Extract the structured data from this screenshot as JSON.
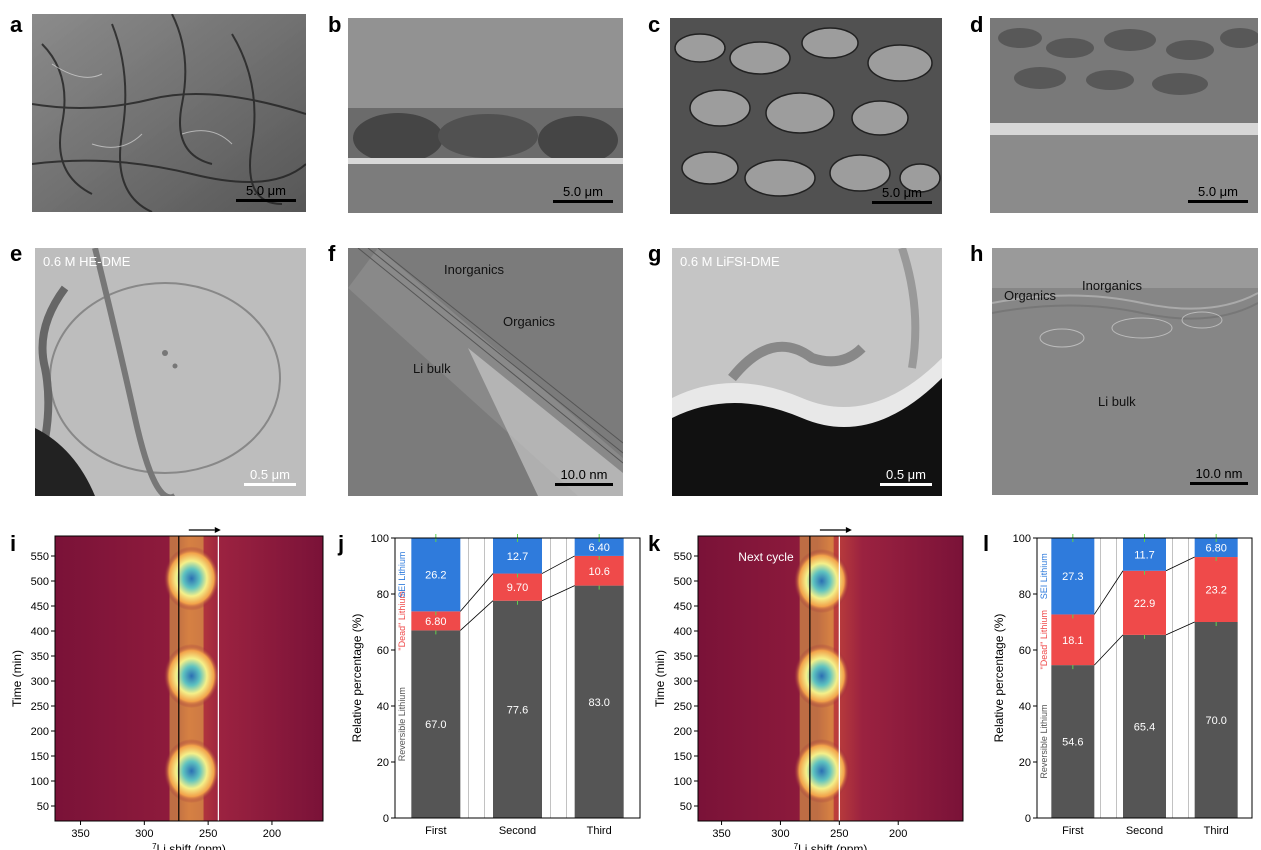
{
  "panels": {
    "a": {
      "label": "a",
      "scale": "5.0 μm"
    },
    "b": {
      "label": "b",
      "scale": "5.0 μm"
    },
    "c": {
      "label": "c",
      "scale": "5.0 μm"
    },
    "d": {
      "label": "d",
      "scale": "5.0 μm"
    },
    "e": {
      "label": "e",
      "title": "0.6 M HE-DME",
      "scale": "0.5 μm"
    },
    "f": {
      "label": "f",
      "scale": "10.0 nm",
      "annotations": [
        "Inorganics",
        "Organics",
        "Li bulk"
      ]
    },
    "g": {
      "label": "g",
      "title": "0.6 M LiFSI-DME",
      "scale": "0.5 μm"
    },
    "h": {
      "label": "h",
      "scale": "10.0 nm",
      "annotations": [
        "Organics",
        "Inorganics",
        "Li bulk"
      ]
    },
    "i": {
      "label": "i"
    },
    "j": {
      "label": "j"
    },
    "k": {
      "label": "k",
      "annotation": "Next cycle"
    },
    "l": {
      "label": "l"
    }
  },
  "chart_data": [
    {
      "panel": "i",
      "type": "heatmap",
      "xlabel": "7Li shift (ppm)",
      "ylabel": "Time (min)",
      "xlim": [
        370,
        160
      ],
      "ylim": [
        20,
        590
      ],
      "xticks": [
        350,
        300,
        250,
        200
      ],
      "yticks": [
        50,
        100,
        150,
        200,
        250,
        300,
        350,
        400,
        450,
        500,
        550
      ],
      "peak_times": [
        120,
        310,
        505
      ],
      "peak_shift": 263,
      "vlines": [
        273,
        242
      ]
    },
    {
      "panel": "j",
      "type": "bar",
      "categories": [
        "First",
        "Second",
        "Third"
      ],
      "ylabel": "Relative percentage (%)",
      "ylim": [
        0,
        100
      ],
      "yticks": [
        0,
        20,
        40,
        60,
        80,
        100
      ],
      "series": [
        {
          "name": "Reversible Lithium",
          "color": "#555555",
          "values": [
            67.0,
            77.6,
            83.0
          ],
          "labels": [
            "67.0",
            "77.6",
            "83.0"
          ]
        },
        {
          "name": "\"Dead\" Lithium",
          "color": "#ef4a4a",
          "values": [
            6.8,
            9.7,
            10.6
          ],
          "labels": [
            "6.80",
            "9.70",
            "10.6"
          ]
        },
        {
          "name": "SEI Lithium",
          "color": "#2f7bdc",
          "values": [
            26.2,
            12.7,
            6.4
          ],
          "labels": [
            "26.2",
            "12.7",
            "6.40"
          ]
        }
      ]
    },
    {
      "panel": "k",
      "type": "heatmap",
      "xlabel": "7Li shift (ppm)",
      "ylabel": "Time (min)",
      "xlim": [
        370,
        145
      ],
      "ylim": [
        20,
        590
      ],
      "xticks": [
        350,
        300,
        250,
        200
      ],
      "yticks": [
        50,
        100,
        150,
        200,
        250,
        300,
        350,
        400,
        450,
        500,
        550
      ],
      "peak_times": [
        120,
        310,
        500
      ],
      "peak_shift": 265,
      "vlines": [
        275,
        250
      ]
    },
    {
      "panel": "l",
      "type": "bar",
      "categories": [
        "First",
        "Second",
        "Third"
      ],
      "ylabel": "Relative percentage (%)",
      "ylim": [
        0,
        100
      ],
      "yticks": [
        0,
        20,
        40,
        60,
        80,
        100
      ],
      "series": [
        {
          "name": "Reversible Lithium",
          "color": "#555555",
          "values": [
            54.6,
            65.4,
            70.0
          ],
          "labels": [
            "54.6",
            "65.4",
            "70.0"
          ]
        },
        {
          "name": "\"Dead\" Lithium",
          "color": "#ef4a4a",
          "values": [
            18.1,
            22.9,
            23.2
          ],
          "labels": [
            "18.1",
            "22.9",
            "23.2"
          ]
        },
        {
          "name": "SEI Lithium",
          "color": "#2f7bdc",
          "values": [
            27.3,
            11.7,
            6.8
          ],
          "labels": [
            "27.3",
            "11.7",
            "6.80"
          ]
        }
      ]
    }
  ]
}
